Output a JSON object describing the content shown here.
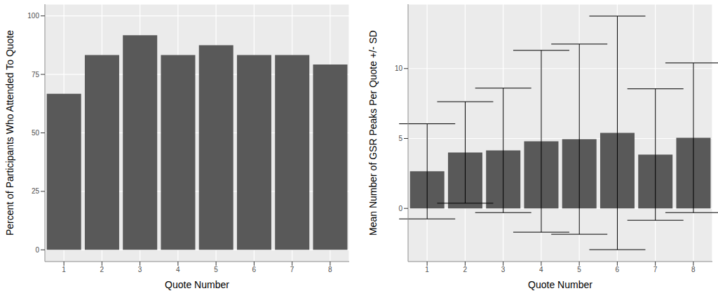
{
  "chart_data": [
    {
      "type": "bar",
      "categories": [
        "1",
        "2",
        "3",
        "4",
        "5",
        "6",
        "7",
        "8"
      ],
      "values": [
        66.7,
        83.3,
        91.7,
        83.3,
        87.5,
        83.3,
        83.3,
        79.2
      ],
      "color": "#595959",
      "xlabel": "Quote Number",
      "ylabel": "Percent of Participants Who Attended To Quote",
      "ylim": [
        -5,
        105
      ],
      "yticks": [
        0,
        25,
        50,
        75,
        100
      ],
      "grid": true
    },
    {
      "type": "bar",
      "categories": [
        "1",
        "2",
        "3",
        "4",
        "5",
        "6",
        "7",
        "8"
      ],
      "values": [
        2.65,
        4.0,
        4.15,
        4.8,
        4.95,
        5.4,
        3.85,
        5.05
      ],
      "sd": [
        3.4,
        3.63,
        4.45,
        6.5,
        6.8,
        8.35,
        4.7,
        5.35
      ],
      "color": "#595959",
      "xlabel": "Quote Number",
      "ylabel": "Mean Number of GSR Peaks Per Quote +/- SD",
      "ylim": [
        -3.8,
        14.6
      ],
      "yticks": [
        0,
        5,
        10
      ],
      "grid": true
    }
  ]
}
